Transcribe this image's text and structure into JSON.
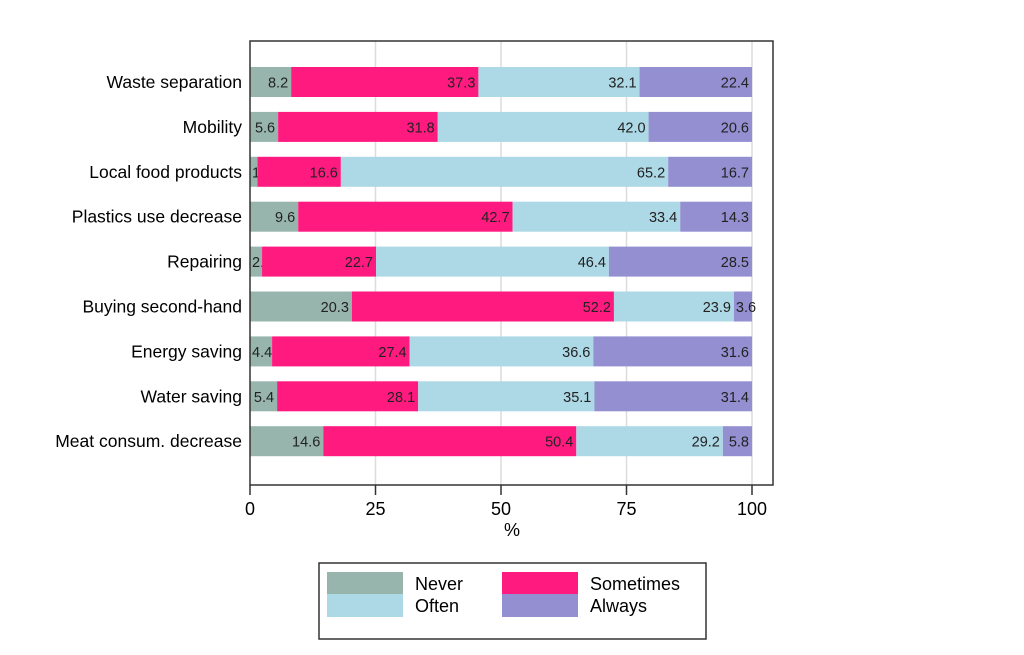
{
  "chart_data": {
    "type": "bar",
    "orientation": "horizontal",
    "stacked": true,
    "categories": [
      "Waste separation",
      "Mobility",
      "Local food products",
      "Plastics use decrease",
      "Repairing",
      "Buying second-hand",
      "Energy saving",
      "Water saving",
      "Meat consum. decrease"
    ],
    "series": [
      {
        "name": "Never",
        "color": "#97b5ad",
        "values": [
          8.2,
          5.6,
          1.5,
          9.6,
          2.4,
          20.3,
          4.4,
          5.4,
          14.6
        ]
      },
      {
        "name": "Sometimes",
        "color": "#ff1a80",
        "values": [
          37.3,
          31.8,
          16.6,
          42.7,
          22.7,
          52.2,
          27.4,
          28.1,
          50.4
        ]
      },
      {
        "name": "Often",
        "color": "#add8e6",
        "values": [
          32.1,
          42.0,
          65.2,
          33.4,
          46.4,
          23.9,
          36.6,
          35.1,
          29.2
        ]
      },
      {
        "name": "Always",
        "color": "#938fd1",
        "values": [
          22.4,
          20.6,
          16.7,
          14.3,
          28.5,
          3.6,
          31.6,
          31.4,
          5.8
        ]
      }
    ],
    "title": "",
    "xlabel": "%",
    "ylabel": "",
    "xlim": [
      0,
      100
    ],
    "xticks": [
      "0",
      "25",
      "50",
      "75",
      "100"
    ],
    "grid": true,
    "legend": "bottom"
  }
}
